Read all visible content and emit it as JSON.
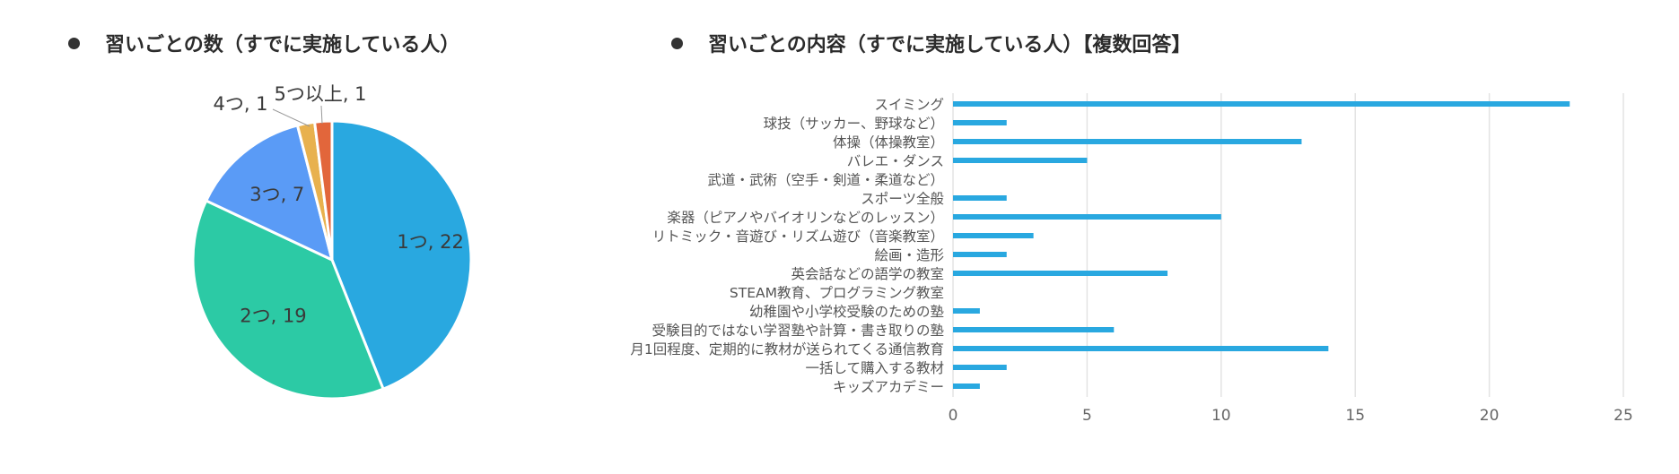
{
  "left_panel": {
    "title": "習いごとの数（すでに実施している人）"
  },
  "right_panel": {
    "title": "習いごとの内容（すでに実施している人）【複数回答】"
  },
  "chart_data": [
    {
      "type": "pie",
      "title": "習いごとの数（すでに実施している人）",
      "slices": [
        {
          "label": "1つ",
          "value": 22,
          "display": "1つ, 22",
          "color": "#29a8e0"
        },
        {
          "label": "2つ",
          "value": 19,
          "display": "2つ, 19",
          "color": "#2ccaa5"
        },
        {
          "label": "3つ",
          "value": 7,
          "display": "3つ, 7",
          "color": "#5a9bf6"
        },
        {
          "label": "4つ",
          "value": 1,
          "display": "4つ, 1",
          "color": "#e8b14e"
        },
        {
          "label": "5つ以上",
          "value": 1,
          "display": "5つ以上, 1",
          "color": "#e2663b"
        }
      ]
    },
    {
      "type": "bar",
      "orientation": "horizontal",
      "title": "習いごとの内容（すでに実施している人）【複数回答】",
      "categories": [
        "スイミング",
        "球技（サッカー、野球など）",
        "体操（体操教室）",
        "バレエ・ダンス",
        "武道・武術（空手・剣道・柔道など）",
        "スポーツ全般",
        "楽器（ピアノやバイオリンなどのレッスン）",
        "リトミック・音遊び・リズム遊び（音楽教室）",
        "絵画・造形",
        "英会話などの語学の教室",
        "STEAM教育、プログラミング教室",
        "幼稚園や小学校受験のための塾",
        "受験目的ではない学習塾や計算・書き取りの塾",
        "月1回程度、定期的に教材が送られてくる通信教育",
        "一括して購入する教材",
        "キッズアカデミー"
      ],
      "values": [
        23,
        2,
        13,
        5,
        0,
        2,
        10,
        3,
        2,
        8,
        0,
        1,
        6,
        14,
        2,
        1
      ],
      "xlim": [
        0,
        25
      ],
      "xticks": [
        0,
        5,
        10,
        15,
        20,
        25
      ],
      "bar_color": "#29a8e0",
      "grid": true
    }
  ]
}
